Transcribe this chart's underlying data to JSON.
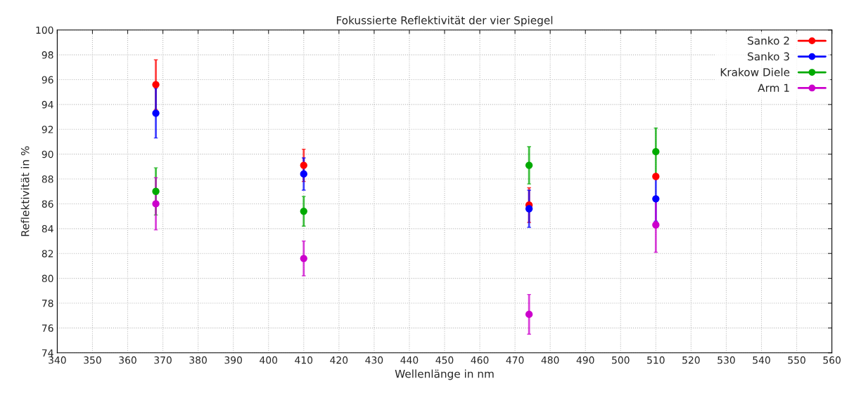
{
  "chart_data": {
    "type": "scatter",
    "title": "Fokussierte Reflektivität der vier Spiegel",
    "xlabel": "Wellenlänge in nm",
    "ylabel": "Reflektivität in %",
    "x": [
      368,
      410,
      474,
      510
    ],
    "series": [
      {
        "name": "Sanko 2",
        "color": "#ff0000",
        "values": [
          95.6,
          89.1,
          85.9,
          88.2
        ],
        "errors": [
          2.0,
          1.3,
          1.4,
          null
        ]
      },
      {
        "name": "Sanko 3",
        "color": "#0000ff",
        "values": [
          93.3,
          88.4,
          85.6,
          86.4
        ],
        "errors": [
          2.0,
          1.3,
          1.5,
          1.8
        ]
      },
      {
        "name": "Krakow Diele",
        "color": "#00aa00",
        "values": [
          87.0,
          85.4,
          89.1,
          90.2
        ],
        "errors": [
          1.9,
          1.2,
          1.5,
          1.9
        ]
      },
      {
        "name": "Arm 1",
        "color": "#cc00cc",
        "values": [
          86.0,
          81.6,
          77.1,
          84.3
        ],
        "errors": [
          2.1,
          1.4,
          1.6,
          2.2
        ]
      }
    ],
    "xlim": [
      340,
      560
    ],
    "xticks": [
      340,
      350,
      360,
      370,
      380,
      390,
      400,
      410,
      420,
      430,
      440,
      450,
      460,
      470,
      480,
      490,
      500,
      510,
      520,
      530,
      540,
      550,
      560
    ],
    "ylim": [
      74,
      100
    ],
    "yticks": [
      74,
      76,
      78,
      80,
      82,
      84,
      86,
      88,
      90,
      92,
      94,
      96,
      98,
      100
    ],
    "grid": true,
    "legend": "top right",
    "marker": "circle"
  }
}
